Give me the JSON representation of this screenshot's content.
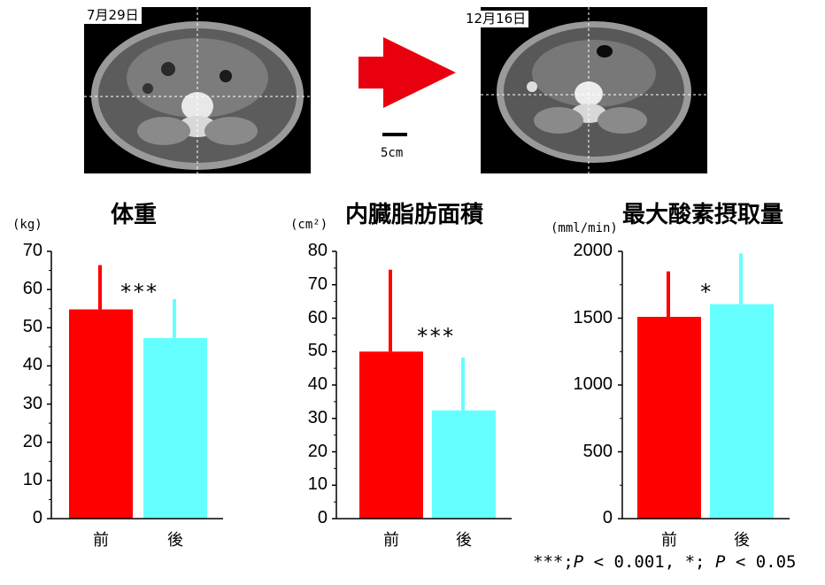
{
  "ct_images": [
    {
      "date": "7月29日"
    },
    {
      "date": "12月16日"
    }
  ],
  "scale": {
    "label": "5cm"
  },
  "colors": {
    "before": "#ff0000",
    "after": "#66ffff",
    "arrow": "#e8000e"
  },
  "chart_data": [
    {
      "type": "bar",
      "title": "体重",
      "ylabel": "(kg)",
      "categories": [
        "前",
        "後"
      ],
      "values": [
        54.8,
        47.3
      ],
      "error_upper": [
        66.4,
        57.5
      ],
      "ylim": [
        0,
        70
      ],
      "yticks": [
        "0",
        "10",
        "20",
        "30",
        "40",
        "50",
        "60",
        "70"
      ],
      "significance": "***",
      "grid": false
    },
    {
      "type": "bar",
      "title": "内臓脂肪面積",
      "ylabel": "(cm²)",
      "categories": [
        "前",
        "後"
      ],
      "values": [
        50.0,
        32.4
      ],
      "error_upper": [
        74.5,
        48.2
      ],
      "ylim": [
        0,
        80
      ],
      "yticks": [
        "0",
        "10",
        "20",
        "30",
        "40",
        "50",
        "60",
        "70",
        "80"
      ],
      "significance": "***",
      "grid": false
    },
    {
      "type": "bar",
      "title": "最大酸素摂取量",
      "ylabel": "(mml/min)",
      "categories": [
        "前",
        "後"
      ],
      "values": [
        1510,
        1605
      ],
      "error_upper": [
        1850,
        1985
      ],
      "ylim": [
        0,
        2000
      ],
      "yticks": [
        "0",
        "500",
        "1000",
        "1500",
        "2000"
      ],
      "significance": "*",
      "grid": false
    }
  ],
  "footnote": {
    "sig3": "***;",
    "p": "P",
    "lt1": " < 0.001, ",
    "sig1": "*; ",
    "lt2": " < 0.05"
  }
}
